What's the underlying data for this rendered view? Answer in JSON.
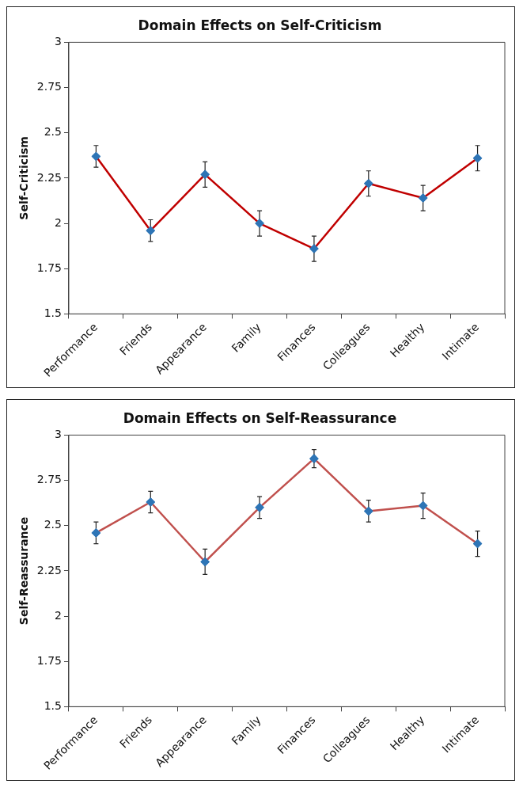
{
  "chart_data": [
    {
      "type": "line",
      "title": "Domain Effects on Self-Criticism",
      "ylabel": "Self-Criticism",
      "categories": [
        "Performance",
        "Friends",
        "Appearance",
        "Family",
        "Finances",
        "Colleagues",
        "Healthy",
        "Intimate"
      ],
      "series": [
        {
          "color": "#c00000",
          "values": [
            2.37,
            1.96,
            2.27,
            2.0,
            1.86,
            2.22,
            2.14,
            2.36
          ],
          "errors": [
            0.06,
            0.06,
            0.07,
            0.07,
            0.07,
            0.07,
            0.07,
            0.07
          ]
        }
      ],
      "ylim": [
        1.5,
        3
      ],
      "yticks": [
        1.5,
        1.75,
        2,
        2.25,
        2.5,
        2.75,
        3
      ],
      "grid": false,
      "legend": false,
      "marker": "diamond",
      "line_style": "solid"
    },
    {
      "type": "line",
      "title": "Domain Effects on Self-Reassurance",
      "ylabel": "Self-Reassurance",
      "categories": [
        "Performance",
        "Friends",
        "Appearance",
        "Family",
        "Finances",
        "Colleagues",
        "Healthy",
        "Intimate"
      ],
      "series": [
        {
          "color": "#c0504d",
          "values": [
            2.46,
            2.63,
            2.3,
            2.6,
            2.87,
            2.58,
            2.61,
            2.4
          ],
          "errors": [
            0.06,
            0.06,
            0.07,
            0.06,
            0.05,
            0.06,
            0.07,
            0.07
          ]
        }
      ],
      "ylim": [
        1.5,
        3
      ],
      "yticks": [
        1.5,
        1.75,
        2,
        2.25,
        2.5,
        2.75,
        3
      ],
      "grid": false,
      "legend": false,
      "marker": "diamond",
      "line_style": "solid"
    }
  ]
}
